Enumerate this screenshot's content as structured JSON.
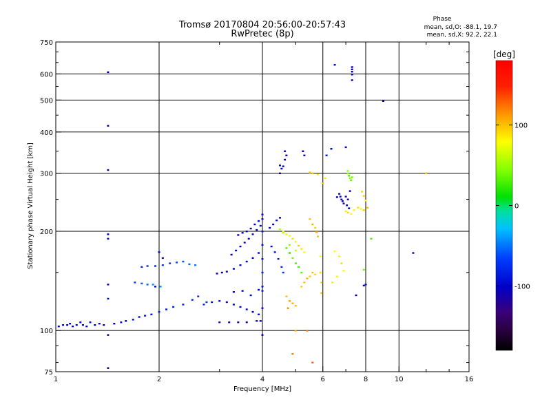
{
  "chart_data": {
    "type": "scatter",
    "title_line1": "Tromsø 20170804 20:56:00-20:57:43",
    "title_line2": "RwPretec (8p)",
    "xlabel": "Frequency [MHz]",
    "ylabel": "Stationary phase Virtual Height [km]",
    "x_scale": "log2",
    "y_scale": "log",
    "xlim": [
      1,
      16
    ],
    "ylim": [
      75,
      750
    ],
    "x_ticks": [
      1,
      2,
      4,
      6,
      8,
      10,
      16
    ],
    "x_tick_labels": [
      "1",
      "2",
      "4",
      "6",
      "8",
      "10",
      "16"
    ],
    "x_grid": [
      2,
      4,
      6,
      8,
      10
    ],
    "y_ticks": [
      75,
      100,
      200,
      300,
      400,
      500,
      600,
      750
    ],
    "y_tick_labels": [
      "75",
      "100",
      "200",
      "300",
      "400",
      "500",
      "600",
      "750"
    ],
    "y_grid": [
      100,
      200,
      300,
      400,
      500,
      600
    ],
    "grid": true,
    "phase_stats": {
      "heading": "Phase",
      "o_line": "mean, sd,O: -88.1, 19.7",
      "x_line": "mean, sd,X:  92.2, 22.1"
    },
    "colorbar": {
      "label": "[deg]",
      "range": [
        -180,
        180
      ],
      "ticks": [
        100,
        0,
        -100
      ],
      "tick_labels": [
        "100",
        "0",
        "-100"
      ]
    },
    "series": [
      {
        "name": "O",
        "points": [
          [
            1.02,
            103,
            -100
          ],
          [
            1.05,
            104,
            -95
          ],
          [
            1.08,
            104,
            -100
          ],
          [
            1.1,
            105,
            -90
          ],
          [
            1.12,
            103,
            -105
          ],
          [
            1.15,
            104,
            -95
          ],
          [
            1.18,
            106,
            -100
          ],
          [
            1.2,
            104,
            -95
          ],
          [
            1.23,
            103,
            -100
          ],
          [
            1.26,
            106,
            -92
          ],
          [
            1.3,
            104,
            -100
          ],
          [
            1.34,
            105,
            -95
          ],
          [
            1.38,
            104,
            -100
          ],
          [
            1.42,
            608,
            -100
          ],
          [
            1.42,
            418,
            -100
          ],
          [
            1.42,
            307,
            -100
          ],
          [
            1.42,
            196,
            -100
          ],
          [
            1.42,
            190,
            -95
          ],
          [
            1.42,
            138,
            -100
          ],
          [
            1.42,
            125,
            -90
          ],
          [
            1.42,
            97,
            -100
          ],
          [
            1.42,
            77,
            -110
          ],
          [
            1.48,
            105,
            -100
          ],
          [
            1.55,
            106,
            -95
          ],
          [
            1.6,
            107,
            -100
          ],
          [
            1.68,
            108,
            -92
          ],
          [
            1.75,
            110,
            -95
          ],
          [
            1.82,
            111,
            -90
          ],
          [
            1.9,
            112,
            -90
          ],
          [
            2.0,
            114,
            -85
          ],
          [
            2.1,
            116,
            -90
          ],
          [
            2.2,
            118,
            -80
          ],
          [
            2.35,
            120,
            -85
          ],
          [
            2.5,
            124,
            -80
          ],
          [
            2.6,
            127,
            -75
          ],
          [
            2.75,
            122,
            -70
          ],
          [
            1.78,
            156,
            -80
          ],
          [
            1.85,
            157,
            -75
          ],
          [
            1.95,
            157,
            -78
          ],
          [
            2.05,
            158,
            -72
          ],
          [
            2.15,
            160,
            -70
          ],
          [
            2.25,
            161,
            -65
          ],
          [
            2.35,
            162,
            -60
          ],
          [
            2.45,
            159,
            -55
          ],
          [
            2.55,
            158,
            -50
          ],
          [
            1.7,
            140,
            -70
          ],
          [
            1.78,
            139,
            -60
          ],
          [
            1.85,
            138,
            -55
          ],
          [
            1.92,
            138,
            -45
          ],
          [
            2.02,
            136,
            -40
          ],
          [
            2.0,
            173,
            -95
          ],
          [
            2.05,
            166,
            -95
          ],
          [
            1.95,
            136,
            -100
          ],
          [
            2.7,
            120,
            -80
          ],
          [
            2.85,
            122,
            -90
          ],
          [
            3.0,
            123,
            -95
          ],
          [
            3.15,
            122,
            -100
          ],
          [
            3.3,
            120,
            -95
          ],
          [
            3.45,
            118,
            -100
          ],
          [
            3.6,
            116,
            -95
          ],
          [
            3.75,
            114,
            -100
          ],
          [
            3.9,
            112,
            -92
          ],
          [
            3.0,
            106,
            -105
          ],
          [
            3.2,
            106,
            -100
          ],
          [
            3.4,
            106,
            -105
          ],
          [
            3.6,
            106,
            -100
          ],
          [
            3.85,
            107,
            -105
          ],
          [
            3.95,
            107,
            -100
          ],
          [
            2.95,
            149,
            -100
          ],
          [
            3.05,
            150,
            -100
          ],
          [
            3.15,
            151,
            -105
          ],
          [
            3.3,
            154,
            -100
          ],
          [
            3.45,
            158,
            -100
          ],
          [
            3.6,
            162,
            -95
          ],
          [
            3.75,
            166,
            -100
          ],
          [
            3.9,
            172,
            -95
          ],
          [
            3.25,
            170,
            -100
          ],
          [
            3.35,
            175,
            -95
          ],
          [
            3.45,
            180,
            -100
          ],
          [
            3.55,
            185,
            -100
          ],
          [
            3.65,
            190,
            -100
          ],
          [
            3.75,
            196,
            -95
          ],
          [
            3.85,
            202,
            -100
          ],
          [
            3.95,
            208,
            -100
          ],
          [
            3.4,
            195,
            -100
          ],
          [
            3.5,
            198,
            -95
          ],
          [
            3.6,
            200,
            -105
          ],
          [
            3.7,
            204,
            -100
          ],
          [
            3.8,
            210,
            -100
          ],
          [
            3.9,
            215,
            -95
          ],
          [
            3.3,
            131,
            -95
          ],
          [
            3.5,
            132,
            -100
          ],
          [
            3.7,
            128,
            -90
          ],
          [
            3.9,
            133,
            -100
          ],
          [
            4.0,
            136,
            -90
          ],
          [
            4.0,
            225,
            -95
          ],
          [
            4.0,
            218,
            -90
          ],
          [
            4.0,
            200,
            -90
          ],
          [
            4.0,
            182,
            -90
          ],
          [
            4.0,
            165,
            -85
          ],
          [
            4.0,
            150,
            -80
          ],
          [
            4.0,
            132,
            -85
          ],
          [
            4.0,
            117,
            -90
          ],
          [
            4.0,
            97,
            -100
          ],
          [
            4.5,
            300,
            -110
          ],
          [
            4.55,
            310,
            -105
          ],
          [
            4.6,
            315,
            -100
          ],
          [
            4.65,
            330,
            -110
          ],
          [
            4.7,
            340,
            -100
          ],
          [
            4.5,
            317,
            -95
          ],
          [
            4.65,
            350,
            -110
          ],
          [
            4.25,
            180,
            -90
          ],
          [
            4.35,
            173,
            -85
          ],
          [
            4.45,
            165,
            -80
          ],
          [
            4.55,
            156,
            -75
          ],
          [
            4.6,
            150,
            -70
          ],
          [
            4.2,
            205,
            -95
          ],
          [
            4.3,
            210,
            -100
          ],
          [
            4.4,
            216,
            -90
          ],
          [
            4.5,
            220,
            -95
          ],
          [
            5.25,
            350,
            -100
          ],
          [
            5.3,
            340,
            -105
          ],
          [
            6.15,
            340,
            -90
          ],
          [
            6.35,
            356,
            -95
          ],
          [
            7.0,
            360,
            -95
          ],
          [
            6.7,
            260,
            -110
          ],
          [
            6.75,
            255,
            -105
          ],
          [
            6.8,
            250,
            -110
          ],
          [
            6.85,
            247,
            -105
          ],
          [
            6.9,
            243,
            -110
          ],
          [
            7.0,
            255,
            -110
          ],
          [
            7.05,
            240,
            -105
          ],
          [
            7.1,
            250,
            -110
          ],
          [
            7.15,
            235,
            -100
          ],
          [
            7.2,
            265,
            -110
          ],
          [
            6.6,
            254,
            -100
          ],
          [
            7.3,
            630,
            -100
          ],
          [
            7.3,
            620,
            -105
          ],
          [
            7.3,
            610,
            -100
          ],
          [
            7.3,
            598,
            -110
          ],
          [
            7.3,
            575,
            -100
          ],
          [
            6.5,
            640,
            -90
          ],
          [
            9.0,
            497,
            -100
          ],
          [
            11.0,
            172,
            -120
          ],
          [
            7.5,
            128,
            -105
          ],
          [
            7.9,
            137,
            -110
          ],
          [
            8.0,
            138,
            -100
          ]
        ]
      },
      {
        "name": "X",
        "points": [
          [
            4.6,
            200,
            80
          ],
          [
            4.7,
            196,
            85
          ],
          [
            4.8,
            194,
            75
          ],
          [
            4.9,
            190,
            90
          ],
          [
            5.0,
            186,
            70
          ],
          [
            5.1,
            181,
            95
          ],
          [
            5.2,
            177,
            85
          ],
          [
            5.3,
            173,
            80
          ],
          [
            4.5,
            203,
            60
          ],
          [
            4.6,
            198,
            55
          ],
          [
            4.8,
            182,
            50
          ],
          [
            5.0,
            175,
            60
          ],
          [
            4.7,
            178,
            30
          ],
          [
            4.8,
            172,
            20
          ],
          [
            4.9,
            166,
            40
          ],
          [
            5.0,
            160,
            30
          ],
          [
            5.1,
            156,
            25
          ],
          [
            5.2,
            150,
            35
          ],
          [
            4.7,
            127,
            100
          ],
          [
            4.8,
            123,
            110
          ],
          [
            4.9,
            121,
            105
          ],
          [
            5.0,
            119,
            100
          ],
          [
            4.75,
            117,
            115
          ],
          [
            5.2,
            136,
            95
          ],
          [
            5.3,
            140,
            100
          ],
          [
            5.4,
            144,
            105
          ],
          [
            5.5,
            146,
            95
          ],
          [
            5.6,
            150,
            100
          ],
          [
            5.7,
            148,
            90
          ],
          [
            5.5,
            218,
            100
          ],
          [
            5.6,
            210,
            105
          ],
          [
            5.7,
            205,
            95
          ],
          [
            5.75,
            199,
            110
          ],
          [
            5.8,
            193,
            100
          ],
          [
            5.9,
            168,
            80
          ],
          [
            5.9,
            150,
            90
          ],
          [
            5.95,
            140,
            95
          ],
          [
            5.95,
            130,
            100
          ],
          [
            5.5,
            302,
            95
          ],
          [
            5.6,
            300,
            100
          ],
          [
            5.8,
            298,
            90
          ],
          [
            6.1,
            290,
            85
          ],
          [
            6.0,
            280,
            100
          ],
          [
            6.5,
            174,
            80
          ],
          [
            6.7,
            168,
            85
          ],
          [
            6.8,
            160,
            90
          ],
          [
            6.9,
            152,
            80
          ],
          [
            6.6,
            146,
            75
          ],
          [
            6.4,
            140,
            85
          ],
          [
            7.1,
            300,
            40
          ],
          [
            7.15,
            295,
            30
          ],
          [
            7.2,
            290,
            45
          ],
          [
            7.25,
            286,
            35
          ],
          [
            7.3,
            292,
            40
          ],
          [
            7.1,
            305,
            50
          ],
          [
            7.0,
            230,
            85
          ],
          [
            7.1,
            228,
            90
          ],
          [
            7.25,
            226,
            80
          ],
          [
            7.4,
            232,
            75
          ],
          [
            7.6,
            236,
            90
          ],
          [
            7.75,
            234,
            80
          ],
          [
            7.9,
            232,
            95
          ],
          [
            8.1,
            236,
            100
          ],
          [
            7.8,
            264,
            90
          ],
          [
            7.9,
            256,
            95
          ],
          [
            8.0,
            248,
            80
          ],
          [
            12.0,
            300,
            100
          ],
          [
            8.3,
            190,
            30
          ],
          [
            7.9,
            153,
            40
          ],
          [
            4.9,
            85,
            120
          ],
          [
            5.6,
            80,
            130
          ],
          [
            5.4,
            100,
            125
          ],
          [
            5.0,
            100,
            110
          ]
        ]
      }
    ]
  }
}
